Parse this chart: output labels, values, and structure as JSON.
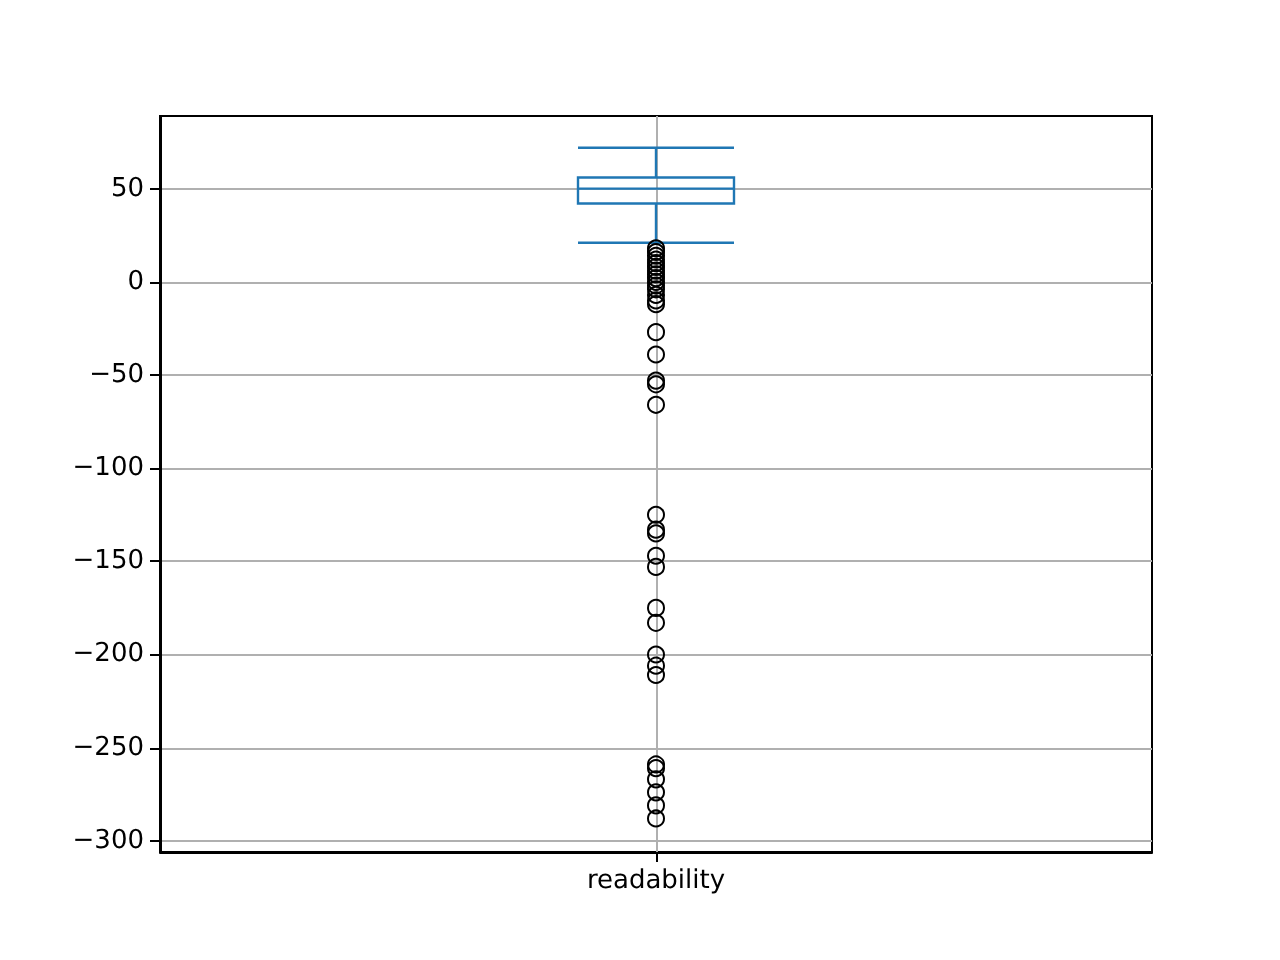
{
  "chart_data": {
    "type": "box",
    "categories": [
      "readability"
    ],
    "color": "#1f77b4",
    "boxes": [
      {
        "low": 21,
        "q1": 42,
        "median": 50,
        "q3": 56,
        "high": 72,
        "outliers": [
          18,
          16,
          14,
          12,
          10,
          8,
          6,
          4,
          2,
          0,
          -2,
          -4,
          -7,
          -10,
          -12,
          -27,
          -39,
          -53,
          -55,
          -66,
          -125,
          -133,
          -135,
          -147,
          -153,
          -175,
          -183,
          -200,
          -206,
          -211,
          -259,
          -261,
          -267,
          -274,
          -281,
          -288
        ]
      }
    ],
    "ylim": [
      -306,
      89
    ],
    "yticks": [
      {
        "value": -300,
        "label": "−300"
      },
      {
        "value": -250,
        "label": "−250"
      },
      {
        "value": -200,
        "label": "−200"
      },
      {
        "value": -150,
        "label": "−150"
      },
      {
        "value": -100,
        "label": "−100"
      },
      {
        "value": -50,
        "label": "−50"
      },
      0,
      50
    ],
    "grid": true,
    "marker": "circle"
  }
}
